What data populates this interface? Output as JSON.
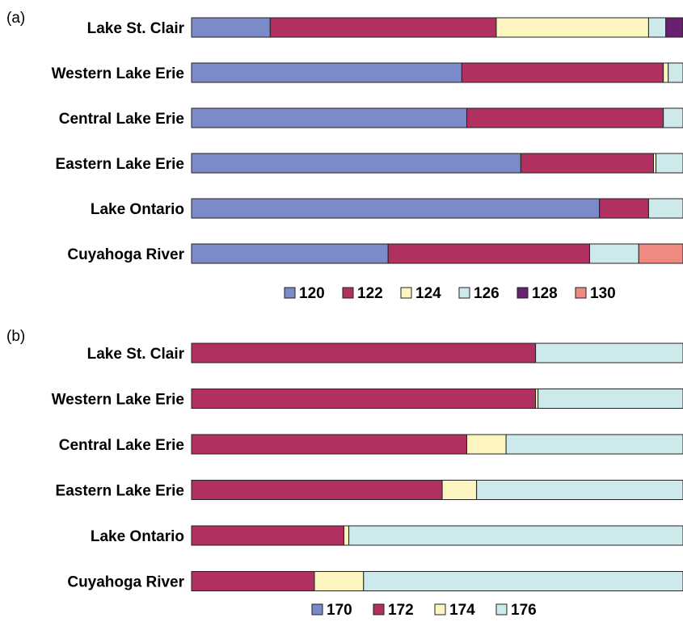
{
  "chart_data": [
    {
      "panel": "(a)",
      "type": "bar",
      "stacked": true,
      "orientation": "horizontal",
      "categories": [
        "Lake St. Clair",
        "Western Lake Erie",
        "Central Lake Erie",
        "Eastern Lake Erie",
        "Lake Ontario",
        "Cuyahoga River"
      ],
      "xlim": [
        0,
        1
      ],
      "series": [
        {
          "name": "120",
          "color": "#7B8BC8",
          "values": [
            0.16,
            0.55,
            0.56,
            0.67,
            0.83,
            0.4
          ]
        },
        {
          "name": "122",
          "color": "#B03060",
          "values": [
            0.46,
            0.41,
            0.4,
            0.27,
            0.1,
            0.41
          ]
        },
        {
          "name": "124",
          "color": "#FCF5C0",
          "values": [
            0.31,
            0.01,
            0.0,
            0.005,
            0.0,
            0.0
          ]
        },
        {
          "name": "126",
          "color": "#CDE9EC",
          "values": [
            0.035,
            0.03,
            0.04,
            0.055,
            0.07,
            0.1
          ]
        },
        {
          "name": "128",
          "color": "#6A2070",
          "values": [
            0.035,
            0.0,
            0.0,
            0.0,
            0.0,
            0.0
          ]
        },
        {
          "name": "130",
          "color": "#F08A80",
          "values": [
            0.0,
            0.0,
            0.0,
            0.0,
            0.0,
            0.09
          ]
        }
      ]
    },
    {
      "panel": "(b)",
      "type": "bar",
      "stacked": true,
      "orientation": "horizontal",
      "categories": [
        "Lake St. Clair",
        "Western Lake Erie",
        "Central Lake Erie",
        "Eastern Lake Erie",
        "Lake Ontario",
        "Cuyahoga River"
      ],
      "xlim": [
        0,
        1
      ],
      "series": [
        {
          "name": "170",
          "color": "#7B8BC8",
          "values": [
            0.0,
            0.0,
            0.0,
            0.0,
            0.0,
            0.0
          ]
        },
        {
          "name": "172",
          "color": "#B03060",
          "values": [
            0.7,
            0.7,
            0.56,
            0.51,
            0.31,
            0.25
          ]
        },
        {
          "name": "174",
          "color": "#FCF5C0",
          "values": [
            0.0,
            0.005,
            0.08,
            0.07,
            0.01,
            0.1
          ]
        },
        {
          "name": "176",
          "color": "#CDE9EC",
          "values": [
            0.3,
            0.295,
            0.36,
            0.42,
            0.68,
            0.65
          ]
        }
      ]
    }
  ]
}
